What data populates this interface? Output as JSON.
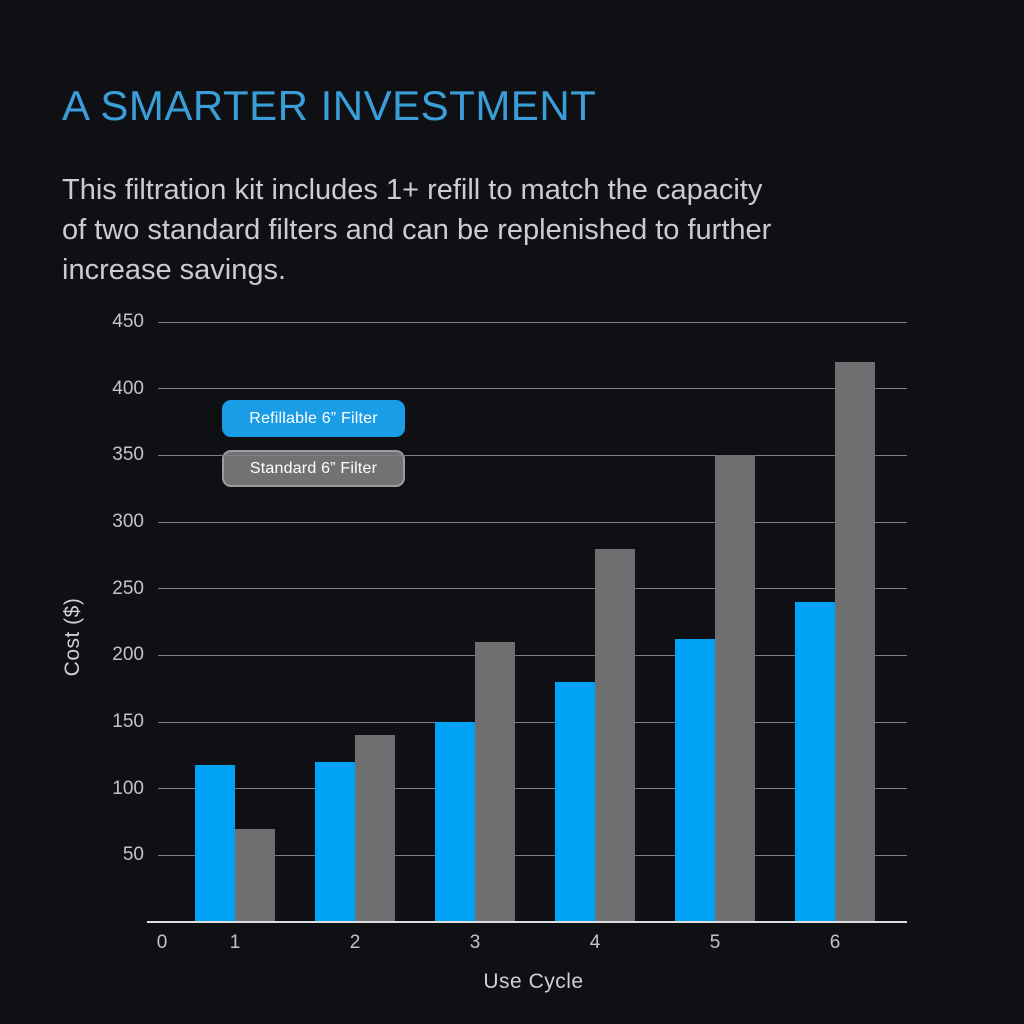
{
  "colors": {
    "background": "#0f1013",
    "title": "#3a9fd9",
    "body_text": "#cbccce",
    "tick_text": "#c3c4c6",
    "axis_label_text": "#cfd0d2",
    "grid": "#7f8083",
    "axis": "#dcdde0",
    "bar_blue": "#00a2f6",
    "bar_gray": "#6e6f71",
    "legend_text": "#ffffff"
  },
  "header": {
    "title": "A SMARTER INVESTMENT",
    "description_lines": [
      "This filtration kit includes 1+ refill to match the capacity",
      "of two standard filters and can be replenished to further",
      "increase savings."
    ]
  },
  "chart_data": {
    "type": "bar",
    "title": "",
    "xlabel": "Use Cycle",
    "ylabel": "Cost ($)",
    "categories": [
      "1",
      "2",
      "3",
      "4",
      "5",
      "6"
    ],
    "x_axis_ticks": [
      "0",
      "1",
      "2",
      "3",
      "4",
      "5",
      "6"
    ],
    "series": [
      {
        "key": "refillable",
        "name": "Refillable 6” Filter",
        "color": "#00a2f6",
        "legend_fill": "#1b9ce6",
        "legend_border": "#1b9ce6",
        "values": [
          118,
          120,
          150,
          180,
          212,
          240
        ]
      },
      {
        "key": "standard",
        "name": "Standard 6” Filter",
        "color": "#6e6f71",
        "legend_fill": "#717274",
        "legend_border": "#9b9c9e",
        "values": [
          70,
          140,
          210,
          280,
          350,
          420
        ]
      }
    ],
    "ylim": [
      0,
      450
    ],
    "y_ticks": [
      50,
      100,
      150,
      200,
      250,
      300,
      350,
      400,
      450
    ],
    "grid": true,
    "legend_position": "upper-left-inside"
  }
}
